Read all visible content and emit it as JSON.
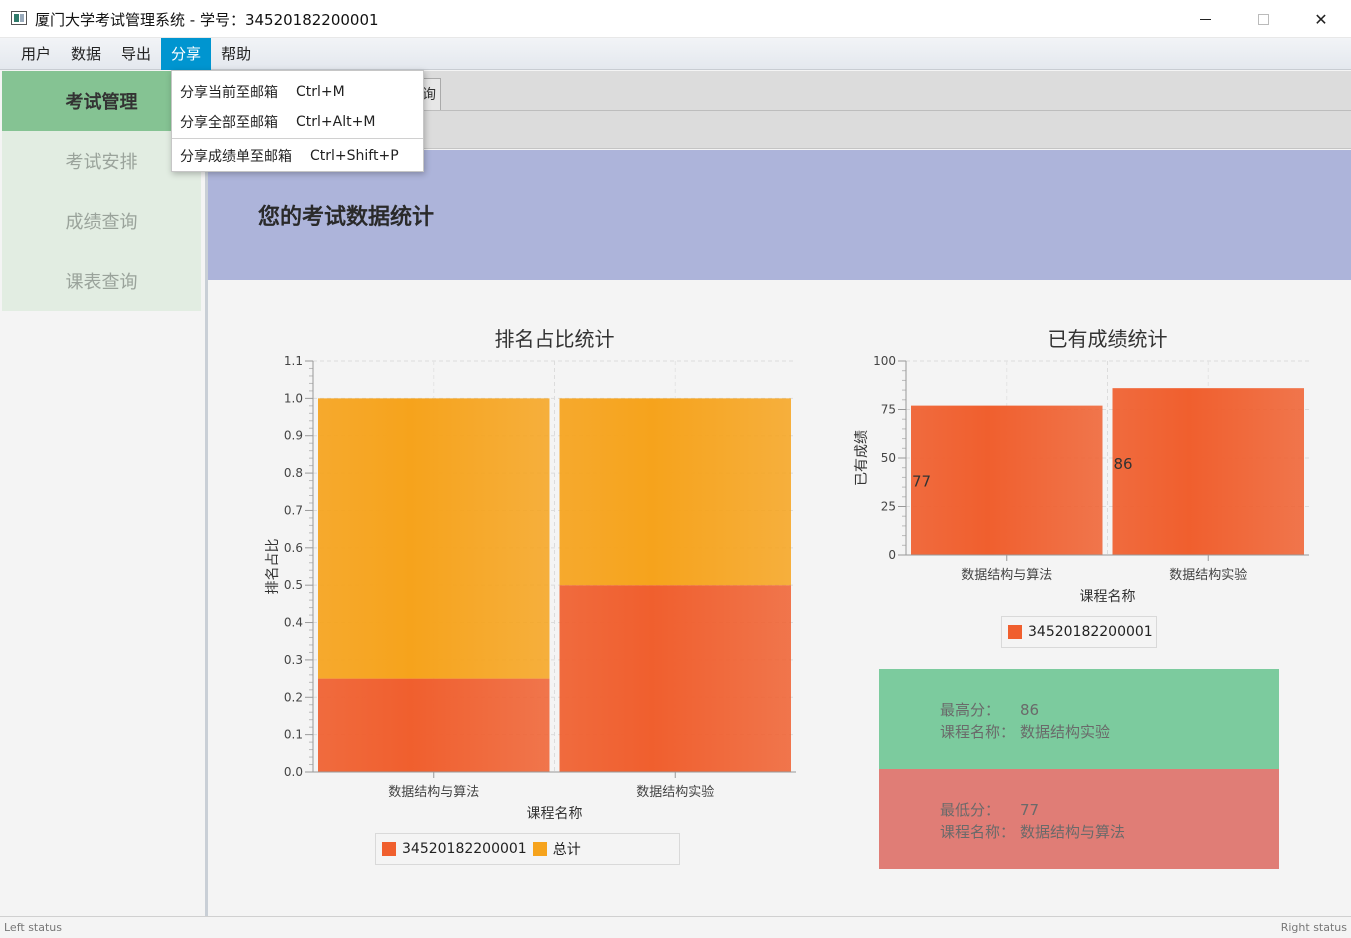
{
  "window": {
    "title": "厦门大学考试管理系统 - 学号：34520182200001",
    "min_icon": "minimize-icon",
    "max_icon": "maximize-icon",
    "close_icon": "close-icon",
    "close_glyph": "✕"
  },
  "menubar": {
    "items": [
      "用户",
      "数据",
      "导出",
      "分享",
      "帮助"
    ],
    "active_index": 3
  },
  "dropdown": {
    "items": [
      {
        "label": "分享当前至邮箱",
        "shortcut": "Ctrl+M"
      },
      {
        "label": "分享全部至邮箱",
        "shortcut": "Ctrl+Alt+M"
      },
      {
        "label": "分享成绩单至邮箱",
        "shortcut": "Ctrl+Shift+P"
      }
    ]
  },
  "sidebar": {
    "header": "考试管理",
    "items": [
      "考试安排",
      "成绩查询",
      "课表查询"
    ]
  },
  "tab": {
    "partial_label": "询"
  },
  "banner": {
    "title": "您的考试数据统计"
  },
  "colors": {
    "series1": "#f05f2e",
    "series2": "#f6a31c",
    "accent": "#0095d0"
  },
  "chart_data": [
    {
      "type": "bar",
      "stacked": true,
      "title": "排名占比统计",
      "xlabel": "课程名称",
      "ylabel": "排名占比",
      "categories": [
        "数据结构与算法",
        "数据结构实验"
      ],
      "series": [
        {
          "name": "34520182200001",
          "values": [
            0.25,
            0.5
          ]
        },
        {
          "name": "总计",
          "values": [
            0.75,
            0.5
          ]
        }
      ],
      "ylim": [
        0,
        1.1
      ],
      "yticks": [
        "0.0",
        "0.1",
        "0.2",
        "0.3",
        "0.4",
        "0.5",
        "0.6",
        "0.7",
        "0.8",
        "0.9",
        "1.0",
        "1.1"
      ],
      "grid": true,
      "legend": "bottom"
    },
    {
      "type": "bar",
      "title": "已有成绩统计",
      "xlabel": "课程名称",
      "ylabel": "已有成绩",
      "categories": [
        "数据结构与算法",
        "数据结构实验"
      ],
      "series": [
        {
          "name": "34520182200001",
          "values": [
            77,
            86
          ]
        }
      ],
      "data_labels": [
        "77",
        "86"
      ],
      "ylim": [
        0,
        100
      ],
      "yticks": [
        "0",
        "25",
        "50",
        "75",
        "100"
      ],
      "grid": true,
      "legend": "bottom"
    }
  ],
  "cards": {
    "high": {
      "score_label": "最高分：",
      "score": "86",
      "course_label": "课程名称：",
      "course": "数据结构实验"
    },
    "low": {
      "score_label": "最低分：",
      "score": "77",
      "course_label": "课程名称：",
      "course": "数据结构与算法"
    }
  },
  "status": {
    "left": "Left status",
    "right": "Right status"
  }
}
